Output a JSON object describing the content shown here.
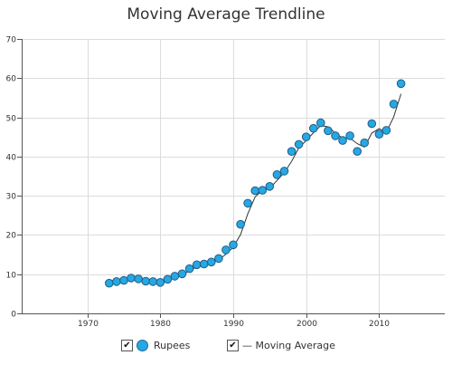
{
  "chart_data": {
    "type": "scatter",
    "title": "Moving Average Trendline",
    "xlabel": "",
    "ylabel": "",
    "xlim": [
      1961,
      2019
    ],
    "ylim": [
      0,
      70
    ],
    "x_ticks": [
      1970,
      1980,
      1990,
      2000,
      2010
    ],
    "y_ticks": [
      0,
      10,
      20,
      30,
      40,
      50,
      60,
      70
    ],
    "grid": true,
    "legend_position": "bottom",
    "series": [
      {
        "name": "Rupees",
        "kind": "markers",
        "color": "#27a7e3",
        "x": [
          1973,
          1974,
          1975,
          1976,
          1977,
          1978,
          1979,
          1980,
          1981,
          1982,
          1983,
          1984,
          1985,
          1986,
          1987,
          1988,
          1989,
          1990,
          1991,
          1992,
          1993,
          1994,
          1995,
          1996,
          1997,
          1998,
          1999,
          2000,
          2001,
          2002,
          2003,
          2004,
          2005,
          2006,
          2007,
          2008,
          2009,
          2010,
          2011,
          2012,
          2013
        ],
        "y": [
          7.7,
          8.1,
          8.4,
          9.0,
          8.8,
          8.2,
          8.1,
          7.9,
          8.7,
          9.5,
          10.1,
          11.4,
          12.4,
          12.6,
          13.1,
          14.0,
          16.2,
          17.5,
          22.7,
          28.1,
          31.3,
          31.4,
          32.4,
          35.4,
          36.3,
          41.3,
          43.1,
          45.0,
          47.2,
          48.6,
          46.6,
          45.3,
          44.1,
          45.3,
          41.3,
          43.5,
          48.4,
          45.7,
          46.7,
          53.4,
          58.6
        ]
      },
      {
        "name": "Moving Average",
        "kind": "line",
        "color": "#333333",
        "x": [
          1974,
          1975,
          1976,
          1977,
          1978,
          1979,
          1980,
          1981,
          1982,
          1983,
          1984,
          1985,
          1986,
          1987,
          1988,
          1989,
          1990,
          1991,
          1992,
          1993,
          1994,
          1995,
          1996,
          1997,
          1998,
          1999,
          2000,
          2001,
          2002,
          2003,
          2004,
          2005,
          2006,
          2007,
          2008,
          2009,
          2010,
          2011,
          2012,
          2013
        ],
        "y": [
          7.9,
          8.3,
          8.7,
          8.9,
          8.5,
          8.2,
          8.0,
          8.3,
          9.1,
          9.8,
          10.8,
          11.9,
          12.5,
          12.9,
          13.6,
          15.1,
          16.9,
          20.1,
          25.4,
          29.7,
          31.4,
          31.9,
          33.9,
          35.9,
          38.8,
          42.2,
          44.1,
          46.1,
          47.9,
          47.6,
          46.0,
          44.7,
          44.7,
          43.3,
          42.4,
          46.0,
          47.1,
          46.2,
          50.1,
          56.0
        ]
      }
    ]
  },
  "legend": {
    "items": [
      {
        "label": "Rupees",
        "checked": true,
        "check_glyph": "✔"
      },
      {
        "label": "— Moving Average",
        "checked": true,
        "check_glyph": "✔"
      }
    ]
  }
}
